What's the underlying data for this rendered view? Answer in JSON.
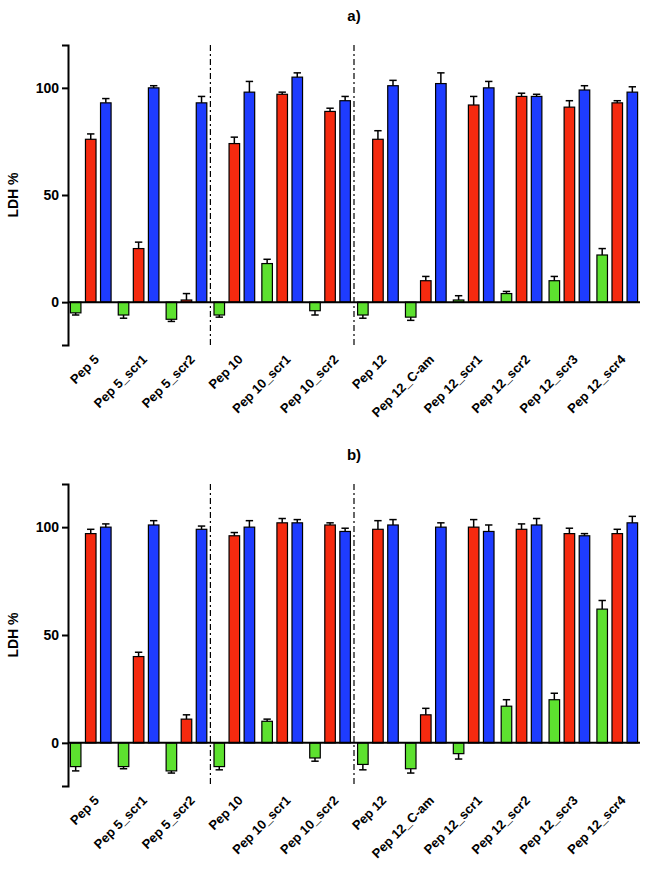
{
  "chart_data": [
    {
      "type": "bar",
      "title": "a)",
      "y_label": "LDH %",
      "categories": [
        "Pep 5",
        "Pep 5_scr1",
        "Pep 5_scr2",
        "Pep 10",
        "Pep 10_scr1",
        "Pep 10_scr2",
        "Pep 12",
        "Pep 12_C-am",
        "Pep 12_scr1",
        "Pep 12_scr2",
        "Pep 12_scr3",
        "Pep 12_scr4"
      ],
      "series": [
        {
          "color": "#5de12f",
          "values": [
            -5,
            -6,
            -8,
            -6,
            18,
            -4,
            -6,
            -7,
            1,
            4,
            10,
            22
          ],
          "errors": [
            1,
            1.5,
            1,
            1,
            2,
            2,
            1.5,
            1.5,
            2,
            1,
            2,
            3
          ]
        },
        {
          "color": "#f52a0f",
          "values": [
            76,
            25,
            1,
            74,
            97,
            89,
            76,
            10,
            92,
            96,
            91,
            93
          ],
          "errors": [
            2.5,
            3,
            3,
            3,
            1,
            1.5,
            4,
            2,
            4,
            1.5,
            3,
            1
          ]
        },
        {
          "color": "#1e3cff",
          "values": [
            93,
            100,
            93,
            98,
            105,
            94,
            101,
            102,
            100,
            96,
            99,
            98
          ],
          "errors": [
            2,
            1,
            3,
            5,
            2,
            2,
            2.5,
            5,
            3,
            1,
            2,
            2.5
          ]
        }
      ],
      "ylim": [
        -20,
        120
      ],
      "yticks": [
        0,
        50,
        100
      ]
    },
    {
      "type": "bar",
      "title": "b)",
      "y_label": "LDH %",
      "categories": [
        "Pep 5",
        "Pep 5_scr1",
        "Pep 5_scr2",
        "Pep 10",
        "Pep 10_scr1",
        "Pep 10_scr2",
        "Pep 12",
        "Pep 12_C-am",
        "Pep 12_scr1",
        "Pep 12_scr2",
        "Pep 12_scr3",
        "Pep 12_scr4"
      ],
      "series": [
        {
          "color": "#5de12f",
          "values": [
            -11,
            -11,
            -13,
            -11,
            10,
            -7,
            -10,
            -12,
            -5,
            17,
            20,
            62
          ],
          "errors": [
            2,
            1,
            1,
            1.5,
            1,
            1.5,
            2.5,
            2,
            2.5,
            3,
            3,
            4
          ]
        },
        {
          "color": "#f52a0f",
          "values": [
            97,
            40,
            11,
            96,
            102,
            101,
            99,
            13,
            100,
            99,
            97,
            97
          ],
          "errors": [
            2,
            2,
            2,
            1.5,
            2,
            1,
            4,
            3,
            3.5,
            2.5,
            2.5,
            2
          ]
        },
        {
          "color": "#1e3cff",
          "values": [
            100,
            101,
            99,
            100,
            102,
            98,
            101,
            100,
            98,
            101,
            96,
            102
          ],
          "errors": [
            1.5,
            2,
            1.5,
            3,
            1.5,
            1.5,
            2.5,
            2,
            3,
            3,
            1,
            3
          ]
        }
      ],
      "ylim": [
        -20,
        120
      ],
      "yticks": [
        0,
        50,
        100
      ]
    }
  ]
}
